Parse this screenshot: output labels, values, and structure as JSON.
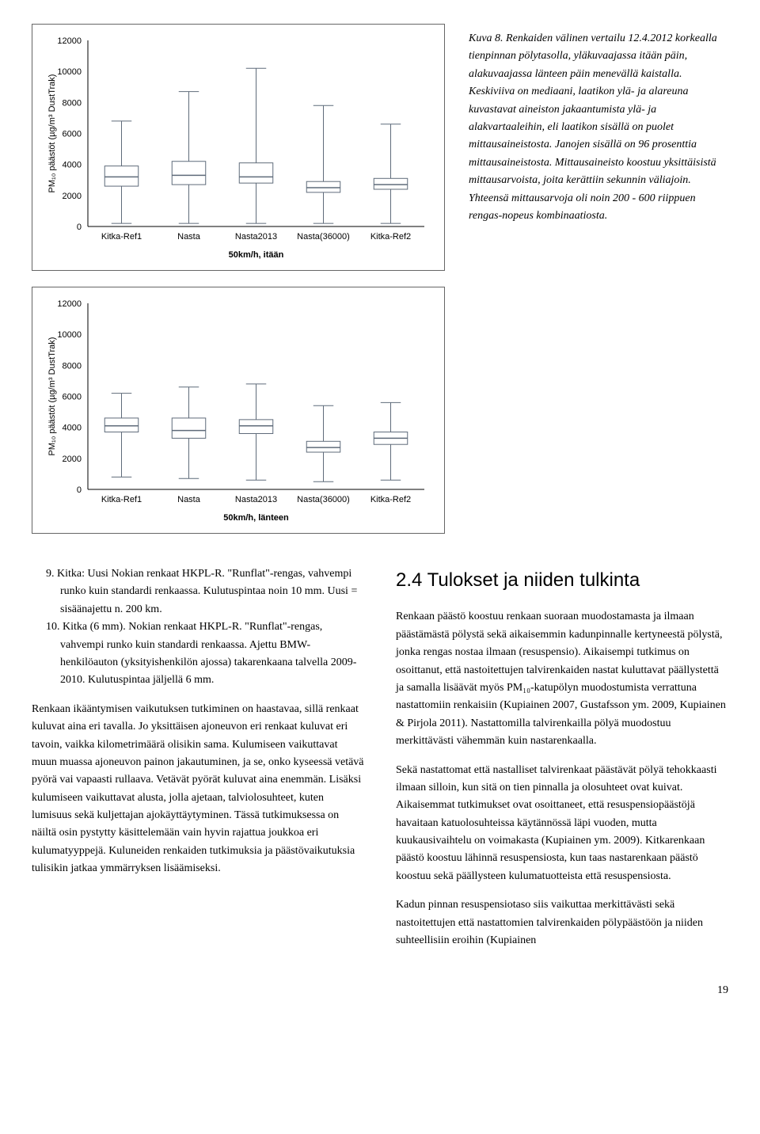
{
  "caption": {
    "title": "Kuva 8. Renkaiden välinen vertailu 12.4.2012 korkealla tienpinnan pölytasolla, yläkuvaajassa itään päin, alakuvaajassa länteen päin menevällä kaistalla.",
    "body": "Keskiviiva on mediaani, laatikon ylä- ja alareuna kuvastavat aineiston jakaantumista ylä- ja alakvartaaleihin, eli laatikon sisällä on puolet mittausaineistosta. Janojen sisällä on 96 prosenttia mittausaineistosta. Mittausaineisto koostuu yksittäisistä mittausarvoista, joita kerättiin sekunnin väliajoin. Yhteensä mittausarvoja oli noin 200 - 600 riippuen rengas-nopeus kombinaatiosta."
  },
  "chart1": {
    "type": "boxplot",
    "ylabel": "PM₁₀ päästöt (µg/m³ DustTrak)",
    "xlabel": "50km/h, itään",
    "ylim": [
      0,
      12000
    ],
    "ytick_step": 2000,
    "categories": [
      "Kitka-Ref1",
      "Nasta",
      "Nasta2013",
      "Nasta(36000)",
      "Kitka-Ref2"
    ],
    "boxes": [
      {
        "min": 200,
        "q1": 2600,
        "median": 3200,
        "q3": 3900,
        "max": 6800
      },
      {
        "min": 200,
        "q1": 2700,
        "median": 3300,
        "q3": 4200,
        "max": 8700
      },
      {
        "min": 200,
        "q1": 2800,
        "median": 3200,
        "q3": 4100,
        "max": 10200
      },
      {
        "min": 200,
        "q1": 2200,
        "median": 2500,
        "q3": 2900,
        "max": 7800
      },
      {
        "min": 200,
        "q1": 2400,
        "median": 2700,
        "q3": 3100,
        "max": 6600
      }
    ],
    "box_fill": "#ffffff",
    "line_color": "#5f6b7a",
    "grid_color": "#c8c8c8",
    "background": "#ffffff",
    "box_width": 0.5
  },
  "chart2": {
    "type": "boxplot",
    "ylabel": "PM₁₀ päästöt (µg/m³ DustTrak)",
    "xlabel": "50km/h, länteen",
    "ylim": [
      0,
      12000
    ],
    "ytick_step": 2000,
    "categories": [
      "Kitka-Ref1",
      "Nasta",
      "Nasta2013",
      "Nasta(36000)",
      "Kitka-Ref2"
    ],
    "boxes": [
      {
        "min": 800,
        "q1": 3700,
        "median": 4100,
        "q3": 4600,
        "max": 6200
      },
      {
        "min": 700,
        "q1": 3300,
        "median": 3800,
        "q3": 4600,
        "max": 6600
      },
      {
        "min": 600,
        "q1": 3600,
        "median": 4100,
        "q3": 4500,
        "max": 6800
      },
      {
        "min": 500,
        "q1": 2400,
        "median": 2700,
        "q3": 3100,
        "max": 5400
      },
      {
        "min": 600,
        "q1": 2900,
        "median": 3300,
        "q3": 3700,
        "max": 5600
      }
    ],
    "box_fill": "#ffffff",
    "line_color": "#5f6b7a",
    "grid_color": "#c8c8c8",
    "background": "#ffffff",
    "box_width": 0.5
  },
  "left_col": {
    "list_items": [
      "9.  Kitka: Uusi Nokian renkaat HKPL-R. \"Runflat\"-rengas, vahvempi runko kuin standardi renkaassa. Kulutuspintaa noin 10 mm. Uusi = sisäänajettu n. 200 km.",
      "10. Kitka (6 mm). Nokian renkaat HKPL-R. \"Runflat\"-rengas, vahvempi runko kuin standardi renkaassa. Ajettu BMW-henkilöauton (yksityishenkilön ajossa) takarenkaana talvella 2009-2010. Kulutuspintaa jäljellä 6 mm."
    ],
    "p1": "Renkaan ikääntymisen vaikutuksen tutkiminen on haastavaa, sillä renkaat kuluvat aina eri tavalla. Jo yksittäisen ajoneuvon eri renkaat kuluvat eri tavoin, vaikka kilometrimäärä olisikin sama. Kulumiseen vaikuttavat muun muassa ajoneuvon painon jakautuminen, ja se, onko kyseessä vetävä pyörä vai vapaasti rullaava. Vetävät pyörät kuluvat aina enemmän. Lisäksi kulumiseen vaikuttavat alusta, jolla ajetaan, talviolosuhteet, kuten lumisuus sekä kuljettajan ajokäyttäytyminen. Tässä tutkimuksessa on näiltä osin pystytty käsittelemään vain hyvin rajattua joukkoa eri kulumatyyppejä. Kuluneiden renkaiden tutkimuksia ja päästövaikutuksia tulisikin jatkaa ymmärryksen lisäämiseksi."
  },
  "right_col": {
    "heading": "2.4 Tulokset ja niiden tulkinta",
    "p1": "Renkaan päästö koostuu renkaan suoraan muodostamasta ja ilmaan päästämästä pölystä sekä aikaisemmin kadunpinnalle kertyneestä pölystä, jonka rengas nostaa ilmaan (resuspensio). Aikaisempi tutkimus on osoittanut, että nastoitettujen talvirenkaiden nastat kuluttavat päällystettä ja samalla lisäävät myös PM₁₀-katupölyn muodostumista verrattuna nastattomiin renkaisiin (Kupiainen 2007, Gustafsson ym. 2009, Kupiainen & Pirjola 2011). Nastattomilla talvirenkailla pölyä muodostuu merkittävästi vähemmän kuin nastarenkaalla.",
    "p2": "Sekä nastattomat että nastalliset talvirenkaat päästävät pölyä tehokkaasti ilmaan silloin, kun sitä on tien pinnalla ja olosuhteet ovat kuivat. Aikaisemmat tutkimukset ovat osoittaneet, että resuspensiopäästöjä havaitaan katuolosuhteissa käytännössä läpi vuoden, mutta kuukausivaihtelu on voimakasta (Kupiainen ym. 2009). Kitkarenkaan päästö koostuu lähinnä resuspensiosta, kun taas nastarenkaan päästö koostuu sekä päällysteen kulumatuotteista että resuspensiosta.",
    "p3": "Kadun pinnan resuspensiotaso siis vaikuttaa merkittävästi sekä nastoitettujen että nastattomien talvirenkaiden pölypäästöön ja niiden suhteellisiin eroihin (Kupiainen"
  },
  "page_number": "19"
}
